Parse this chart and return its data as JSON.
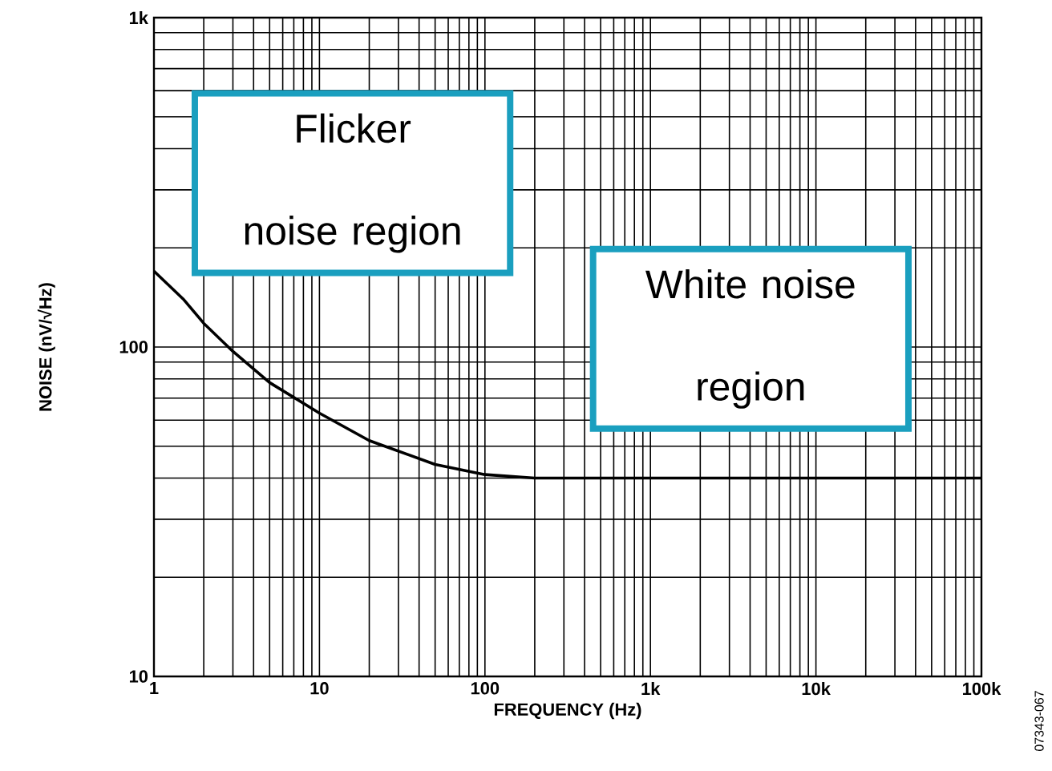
{
  "chart_data": {
    "type": "line",
    "xlabel": "FREQUENCY (Hz)",
    "ylabel": "NOISE (nV/√Hz)",
    "x": [
      1,
      1.5,
      2,
      3,
      5,
      10,
      20,
      50,
      100,
      200,
      100000
    ],
    "series": [
      {
        "color": "#000000",
        "values": [
          170,
          140,
          118,
          97,
          78,
          63,
          52,
          44,
          41,
          40,
          40
        ]
      }
    ],
    "log": "xy",
    "xlim": [
      1,
      100000
    ],
    "ylim": [
      10,
      1000
    ],
    "xticks": [
      1,
      10,
      100,
      {
        "value": 1000,
        "label": "1k"
      },
      {
        "value": 10000,
        "label": "10k"
      },
      {
        "value": 100000,
        "label": "100k"
      }
    ],
    "yticks": [
      10,
      100,
      {
        "value": 1000,
        "label": "1k"
      }
    ],
    "grid": true,
    "marker": "none",
    "line_style": "solid",
    "annotations": [
      "Flicker noise region",
      "White noise region",
      "07343-067"
    ]
  }
}
